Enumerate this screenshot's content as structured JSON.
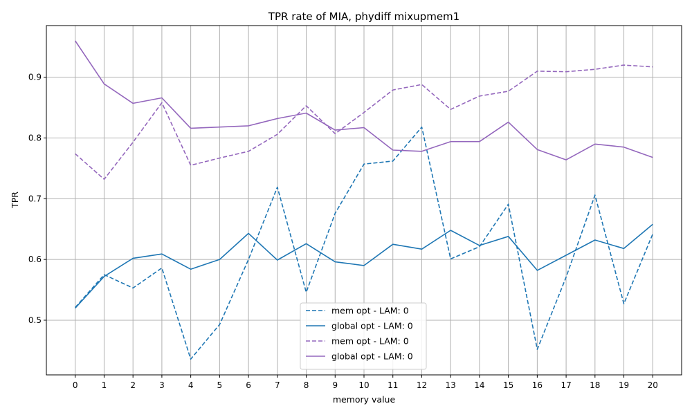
{
  "chart_data": {
    "type": "line",
    "title": "TPR rate of MIA, phydiff mixupmem1",
    "xlabel": "memory value",
    "ylabel": "TPR",
    "x": [
      0,
      1,
      2,
      3,
      4,
      5,
      6,
      7,
      8,
      9,
      10,
      11,
      12,
      13,
      14,
      15,
      16,
      17,
      18,
      19,
      20
    ],
    "xlim": [
      -1,
      21
    ],
    "ylim": [
      0.41,
      0.985
    ],
    "yticks": [
      0.5,
      0.6,
      0.7,
      0.8,
      0.9
    ],
    "grid": true,
    "legend_position": "lower center",
    "series": [
      {
        "name": "mem opt - LAM: 0",
        "color": "#1f77b4",
        "linestyle": "dashed",
        "values": [
          0.521,
          0.575,
          0.553,
          0.586,
          0.436,
          0.493,
          0.6,
          0.719,
          0.546,
          0.676,
          0.757,
          0.762,
          0.818,
          0.601,
          0.621,
          0.691,
          0.452,
          0.571,
          0.706,
          0.527,
          0.642
        ]
      },
      {
        "name": "global opt - LAM: 0",
        "color": "#1f77b4",
        "linestyle": "solid",
        "values": [
          0.52,
          0.572,
          0.602,
          0.609,
          0.584,
          0.6,
          0.643,
          0.599,
          0.626,
          0.596,
          0.59,
          0.625,
          0.617,
          0.648,
          0.623,
          0.638,
          0.582,
          0.607,
          0.632,
          0.618,
          0.658
        ]
      },
      {
        "name": "mem opt - LAM: 0",
        "color": "#9467bd",
        "linestyle": "dashed",
        "values": [
          0.774,
          0.732,
          0.793,
          0.858,
          0.755,
          0.767,
          0.778,
          0.806,
          0.853,
          0.807,
          0.842,
          0.879,
          0.888,
          0.847,
          0.869,
          0.877,
          0.91,
          0.909,
          0.913,
          0.92,
          0.917
        ]
      },
      {
        "name": "global opt - LAM: 0",
        "color": "#9467bd",
        "linestyle": "solid",
        "values": [
          0.96,
          0.889,
          0.857,
          0.866,
          0.816,
          0.818,
          0.82,
          0.832,
          0.841,
          0.813,
          0.817,
          0.78,
          0.778,
          0.794,
          0.794,
          0.826,
          0.781,
          0.764,
          0.79,
          0.785,
          0.768
        ]
      }
    ]
  }
}
